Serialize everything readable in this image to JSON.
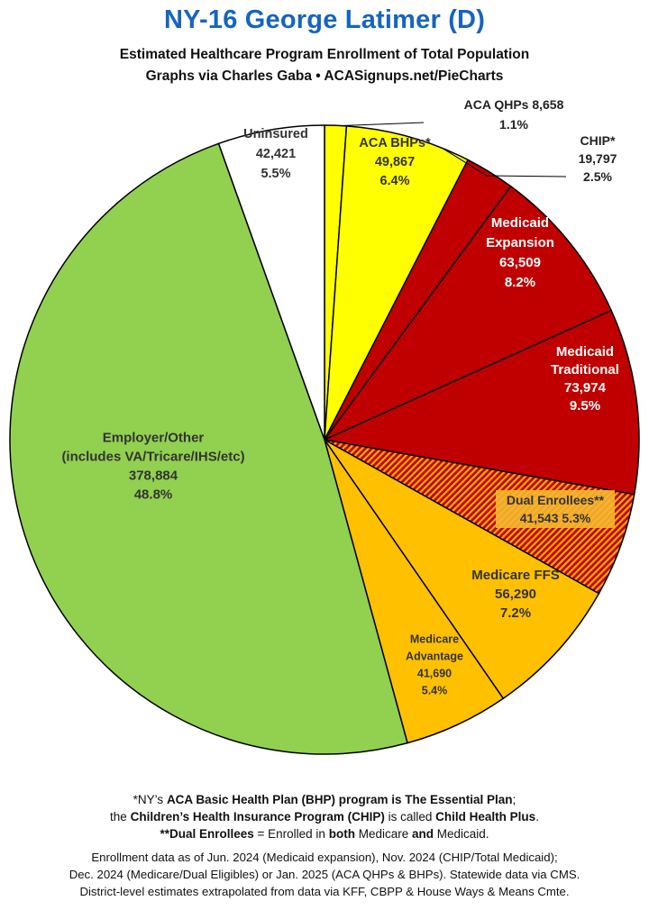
{
  "header": {
    "title": "NY-16 George Latimer (D)",
    "subtitle_line1": "Estimated Healthcare Program Enrollment of Total Population",
    "subtitle_line2": "Graphs via Charles Gaba  •  ACASignups.net/PieCharts"
  },
  "chart_data": {
    "type": "pie",
    "title": "NY-16 George Latimer (D)",
    "subtitle": "Estimated Healthcare Program Enrollment of Total Population",
    "start_angle_deg": 0,
    "direction": "clockwise",
    "slices": [
      {
        "name": "ACA QHPs",
        "value": 8658,
        "percent": "1.1%",
        "value_label": "8,658",
        "color": "#ffff00",
        "label_lines": [
          "ACA QHPs 8,658",
          "1.1%"
        ],
        "label_color": "#222222",
        "callout": true
      },
      {
        "name": "ACA BHPs*",
        "value": 49867,
        "percent": "6.4%",
        "value_label": "49,867",
        "color": "#ffff00",
        "label_lines": [
          "ACA BHPs*",
          "49,867",
          "6.4%"
        ],
        "label_color": "#333333"
      },
      {
        "name": "CHIP*",
        "value": 19797,
        "percent": "2.5%",
        "value_label": "19,797",
        "color": "#c00000",
        "label_lines": [
          "CHIP*",
          "19,797",
          "2.5%"
        ],
        "label_color": "#222222",
        "callout": true
      },
      {
        "name": "Medicaid Expansion",
        "value": 63509,
        "percent": "8.2%",
        "value_label": "63,509",
        "color": "#c00000",
        "label_lines": [
          "Medicaid",
          "Expansion",
          "63,509",
          "8.2%"
        ],
        "label_color": "#ffffff"
      },
      {
        "name": "Medicaid Traditional",
        "value": 73974,
        "percent": "9.5%",
        "value_label": "73,974",
        "color": "#c00000",
        "label_lines": [
          "Medicaid",
          "Traditional",
          "73,974",
          "9.5%"
        ],
        "label_color": "#ffffff"
      },
      {
        "name": "Dual Enrollees**",
        "value": 41543,
        "percent": "5.3%",
        "value_label": "41,543",
        "color": "#c00000",
        "hatch_color": "#ffb000",
        "hatched": true,
        "label_lines": [
          "Dual Enrollees**",
          "41,543 5.3%"
        ],
        "label_color": "#333333"
      },
      {
        "name": "Medicare FFS",
        "value": 56290,
        "percent": "7.2%",
        "value_label": "56,290",
        "color": "#ffc000",
        "label_lines": [
          "Medicare FFS",
          "56,290",
          "7.2%"
        ],
        "label_color": "#333333"
      },
      {
        "name": "Medicare Advantage",
        "value": 41690,
        "percent": "5.4%",
        "value_label": "41,690",
        "color": "#ffc000",
        "label_lines": [
          "Medicare",
          "Advantage",
          "41,690",
          "5.4%"
        ],
        "label_color": "#333333"
      },
      {
        "name": "Employer/Other (includes VA/Tricare/IHS/etc)",
        "value": 378884,
        "percent": "48.8%",
        "value_label": "378,884",
        "color": "#92d050",
        "label_lines": [
          "Employer/Other",
          "(includes VA/Tricare/IHS/etc)",
          "378,884",
          "48.8%"
        ],
        "label_color": "#333333"
      },
      {
        "name": "Uninsured",
        "value": 42421,
        "percent": "5.5%",
        "value_label": "42,421",
        "color": "#ffffff",
        "label_lines": [
          "Uninsured",
          "42,421",
          "5.5%"
        ],
        "label_color": "#333333"
      }
    ]
  },
  "footnotes": {
    "line1": {
      "a": "*NY’s ",
      "b": "ACA Basic Health Plan (BHP) program is The Essential Plan",
      "c": ";"
    },
    "line2": {
      "a": "the ",
      "b": "Children’s Health Insurance Program (CHIP)",
      "c": " is called ",
      "d": "Child Health Plus",
      "e": "."
    },
    "line3": {
      "a": "**Dual Enrollees",
      "b": " = Enrolled in ",
      "c": "both",
      "d": " Medicare ",
      "e": "and",
      "f": " Medicaid."
    }
  },
  "source": {
    "line1": "Enrollment data as of Jun. 2024 (Medicaid expansion), Nov. 2024 (CHIP/Total Medicaid);",
    "line2": "Dec. 2024 (Medicare/Dual Eligibles) or Jan. 2025 (ACA QHPs & BHPs). Statewide data via CMS.",
    "line3": "District-level estimates extrapolated from data via KFF, CBPP & House Ways & Means Cmte."
  }
}
